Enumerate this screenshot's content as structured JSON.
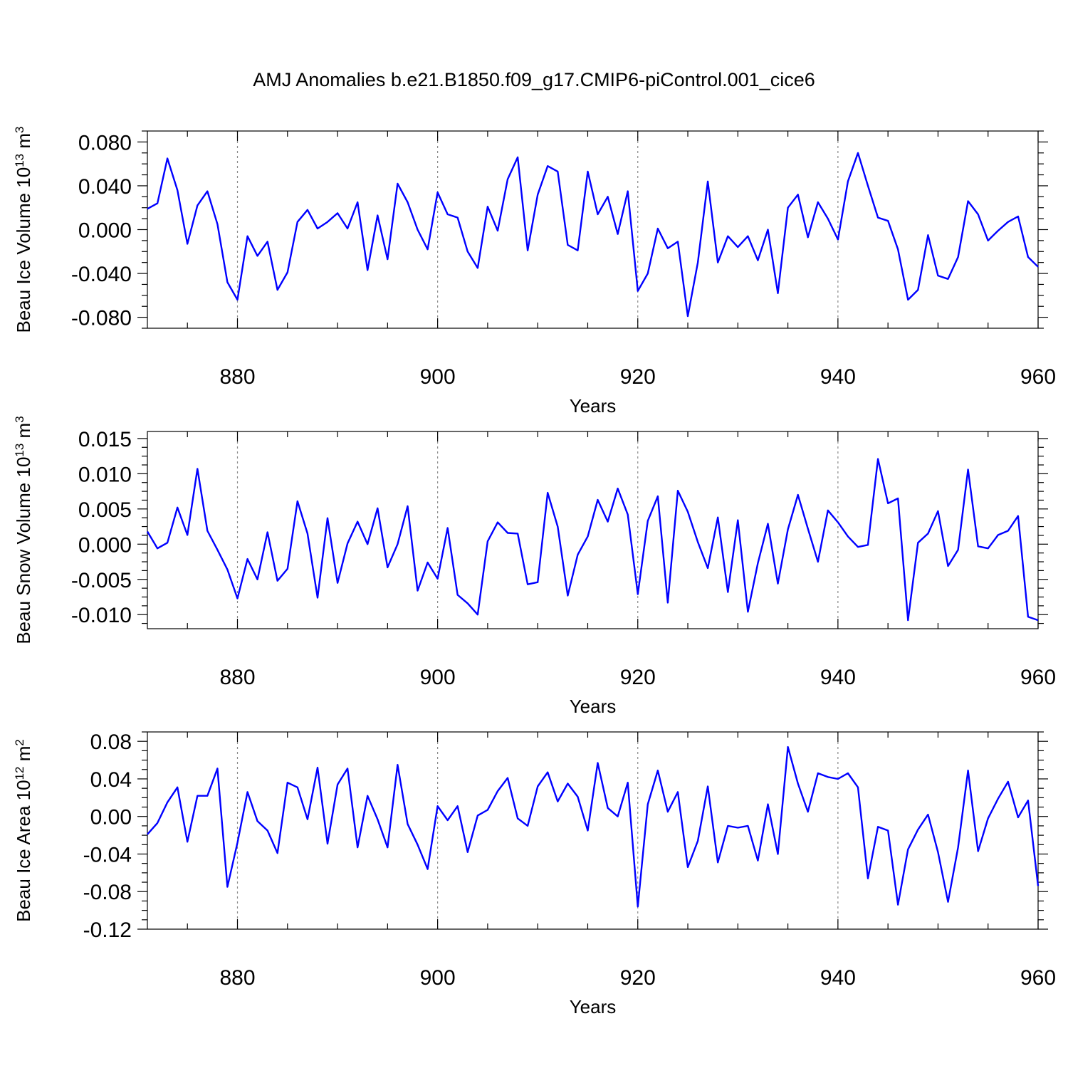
{
  "page": {
    "title": "AMJ Anomalies b.e21.B1850.f09_g17.CMIP6-piControl.001_cice6"
  },
  "colors": {
    "line": "#0000ff",
    "grid": "#888888"
  },
  "chart_data": [
    {
      "type": "line",
      "xlabel": "Years",
      "ylabel": {
        "base": "Beau Ice Volume 10",
        "exp": "13",
        "mid": " m",
        "exp2": "3"
      },
      "xlim": [
        871,
        960
      ],
      "ylim": [
        -0.09,
        0.09
      ],
      "xticks": [
        "880",
        "900",
        "920",
        "940",
        "960"
      ],
      "yticks": [
        "0.080",
        "0.040",
        "0.000",
        "-0.040",
        "-0.080"
      ],
      "grid_x": [
        880,
        900,
        920,
        940
      ],
      "x_start": 871,
      "values": [
        0.019,
        0.024,
        0.065,
        0.036,
        -0.013,
        0.022,
        0.035,
        0.005,
        -0.048,
        -0.064,
        -0.006,
        -0.024,
        -0.011,
        -0.055,
        -0.039,
        0.007,
        0.018,
        0.001,
        0.007,
        0.015,
        0.001,
        0.025,
        -0.037,
        0.013,
        -0.027,
        0.042,
        0.025,
        0.0,
        -0.018,
        0.034,
        0.014,
        0.011,
        -0.02,
        -0.035,
        0.021,
        -0.001,
        0.046,
        0.066,
        -0.019,
        0.032,
        0.058,
        0.053,
        -0.014,
        -0.019,
        0.053,
        0.014,
        0.03,
        -0.004,
        0.035,
        -0.056,
        -0.04,
        0.001,
        -0.017,
        -0.011,
        -0.079,
        -0.03,
        0.044,
        -0.03,
        -0.006,
        -0.016,
        -0.006,
        -0.028,
        0.0,
        -0.058,
        0.02,
        0.032,
        -0.007,
        0.025,
        0.01,
        -0.009,
        0.044,
        0.07,
        0.04,
        0.011,
        0.008,
        -0.018,
        -0.064,
        -0.055,
        -0.005,
        -0.042,
        -0.045,
        -0.025,
        0.026,
        0.014,
        -0.01,
        -0.001,
        0.007,
        0.012,
        -0.025,
        -0.034
      ]
    },
    {
      "type": "line",
      "xlabel": "Years",
      "ylabel": {
        "base": "Beau Snow Volume 10",
        "exp": "13",
        "mid": " m",
        "exp2": "3"
      },
      "xlim": [
        871,
        960
      ],
      "ylim": [
        -0.012,
        0.016
      ],
      "xticks": [
        "880",
        "900",
        "920",
        "940",
        "960"
      ],
      "yticks": [
        "0.015",
        "0.010",
        "0.005",
        "0.000",
        "-0.005",
        "-0.010"
      ],
      "grid_x": [
        880,
        900,
        920,
        940
      ],
      "x_start": 871,
      "values": [
        0.0018,
        -0.0006,
        0.0002,
        0.0052,
        0.0013,
        0.0107,
        0.0019,
        -0.0008,
        -0.0036,
        -0.0077,
        -0.0021,
        -0.005,
        0.0017,
        -0.0052,
        -0.0035,
        0.0061,
        0.0015,
        -0.0076,
        0.0037,
        -0.0055,
        0.0001,
        0.0032,
        0.0,
        0.0051,
        -0.0033,
        0.0,
        0.0054,
        -0.0066,
        -0.0026,
        -0.0049,
        0.0023,
        -0.0072,
        -0.0084,
        -0.01,
        0.0004,
        0.0031,
        0.0016,
        0.0015,
        -0.0057,
        -0.0054,
        0.0073,
        0.0025,
        -0.0073,
        -0.0015,
        0.0011,
        0.0063,
        0.0032,
        0.0079,
        0.0042,
        -0.0071,
        0.0033,
        0.0068,
        -0.0083,
        0.0076,
        0.0046,
        0.0003,
        -0.0034,
        0.0038,
        -0.0068,
        0.0034,
        -0.0096,
        -0.0027,
        0.0029,
        -0.0056,
        0.0021,
        0.007,
        0.0022,
        -0.0025,
        0.0048,
        0.0031,
        0.0011,
        -0.0004,
        -0.0001,
        0.0121,
        0.0058,
        0.0065,
        -0.0108,
        0.0002,
        0.0015,
        0.0047,
        -0.0031,
        -0.0008,
        0.0106,
        -0.0003,
        -0.0006,
        0.0013,
        0.0019,
        0.004,
        -0.0103,
        -0.0108
      ]
    },
    {
      "type": "line",
      "xlabel": "Years",
      "ylabel": {
        "base": "Beau Ice Area 10",
        "exp": "12",
        "mid": " m",
        "exp2": "2"
      },
      "xlim": [
        871,
        960
      ],
      "ylim": [
        -0.12,
        0.09
      ],
      "xticks": [
        "880",
        "900",
        "920",
        "940",
        "960"
      ],
      "yticks": [
        "0.08",
        "0.04",
        "0.00",
        "-0.04",
        "-0.08",
        "-0.12"
      ],
      "grid_x": [
        880,
        900,
        920,
        940
      ],
      "x_start": 871,
      "values": [
        -0.019,
        -0.007,
        0.015,
        0.031,
        -0.027,
        0.022,
        0.022,
        0.051,
        -0.075,
        -0.028,
        0.026,
        -0.005,
        -0.015,
        -0.039,
        0.036,
        0.031,
        -0.003,
        0.052,
        -0.029,
        0.034,
        0.051,
        -0.033,
        0.022,
        -0.003,
        -0.033,
        0.055,
        -0.008,
        -0.03,
        -0.056,
        0.011,
        -0.004,
        0.011,
        -0.038,
        0.001,
        0.007,
        0.027,
        0.041,
        -0.002,
        -0.01,
        0.032,
        0.047,
        0.016,
        0.035,
        0.021,
        -0.015,
        0.057,
        0.009,
        0.0,
        0.036,
        -0.096,
        0.013,
        0.049,
        0.005,
        0.026,
        -0.054,
        -0.026,
        0.032,
        -0.049,
        -0.01,
        -0.012,
        -0.01,
        -0.047,
        0.013,
        -0.04,
        0.074,
        0.035,
        0.005,
        0.046,
        0.042,
        0.04,
        0.046,
        0.031,
        -0.066,
        -0.011,
        -0.015,
        -0.094,
        -0.035,
        -0.014,
        0.002,
        -0.038,
        -0.091,
        -0.033,
        0.049,
        -0.037,
        -0.002,
        0.019,
        0.037,
        -0.001,
        0.017,
        -0.074
      ]
    }
  ]
}
